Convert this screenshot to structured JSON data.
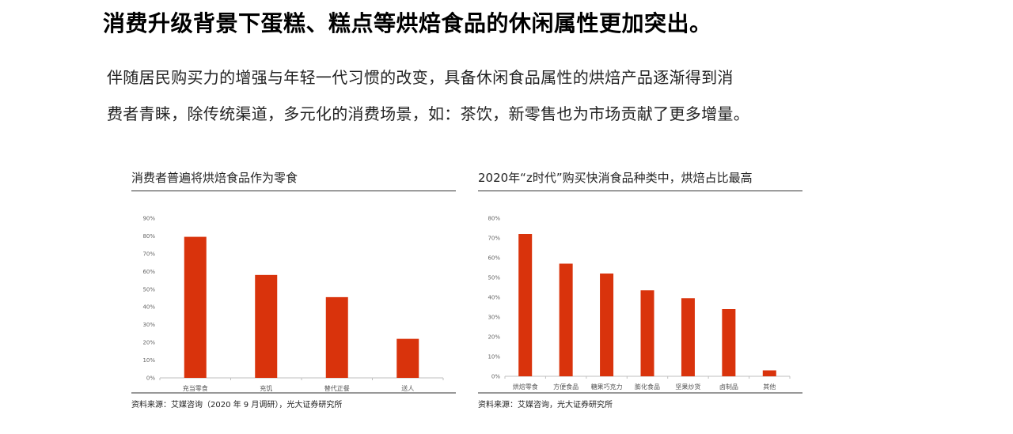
{
  "page": {
    "title": "消费升级背景下蛋糕、糕点等烘焙食品的休闲属性更加突出。",
    "para_line1": "伴随居民购买力的增强与年轻一代习惯的改变，具备休闲食品属性的烘焙产品逐渐得到消",
    "para_line2": "费者青睐，除传统渠道，多元化的消费场景，如：茶饮，新零售也为市场贡献了更多增量。"
  },
  "chart_data": [
    {
      "type": "bar",
      "title": "消费者普遍将烘焙食品作为零食",
      "categories": [
        "充当零食",
        "充饥",
        "替代正餐",
        "送人"
      ],
      "values": [
        79.5,
        58,
        45.5,
        22
      ],
      "yticks": [
        "0%",
        "10%",
        "20%",
        "30%",
        "40%",
        "50%",
        "60%",
        "70%",
        "80%",
        "90%"
      ],
      "ylim": [
        0,
        90
      ],
      "color": "#d9330c",
      "source": "资料来源：艾媒咨询（2020 年 9 月调研），光大证券研究所"
    },
    {
      "type": "bar",
      "title": "2020年“z时代”购买快消食品种类中，烘焙占比最高",
      "categories": [
        "烘焙零食",
        "方便食品",
        "糖果巧克力",
        "膨化食品",
        "坚果炒货",
        "卤制品",
        "其他"
      ],
      "values": [
        72,
        57,
        52,
        43.5,
        39.5,
        34,
        3
      ],
      "yticks": [
        "0%",
        "10%",
        "20%",
        "30%",
        "40%",
        "50%",
        "60%",
        "70%",
        "80%"
      ],
      "ylim": [
        0,
        80
      ],
      "color": "#d9330c",
      "source": "资料来源：艾媒咨询，光大证券研究所"
    }
  ]
}
